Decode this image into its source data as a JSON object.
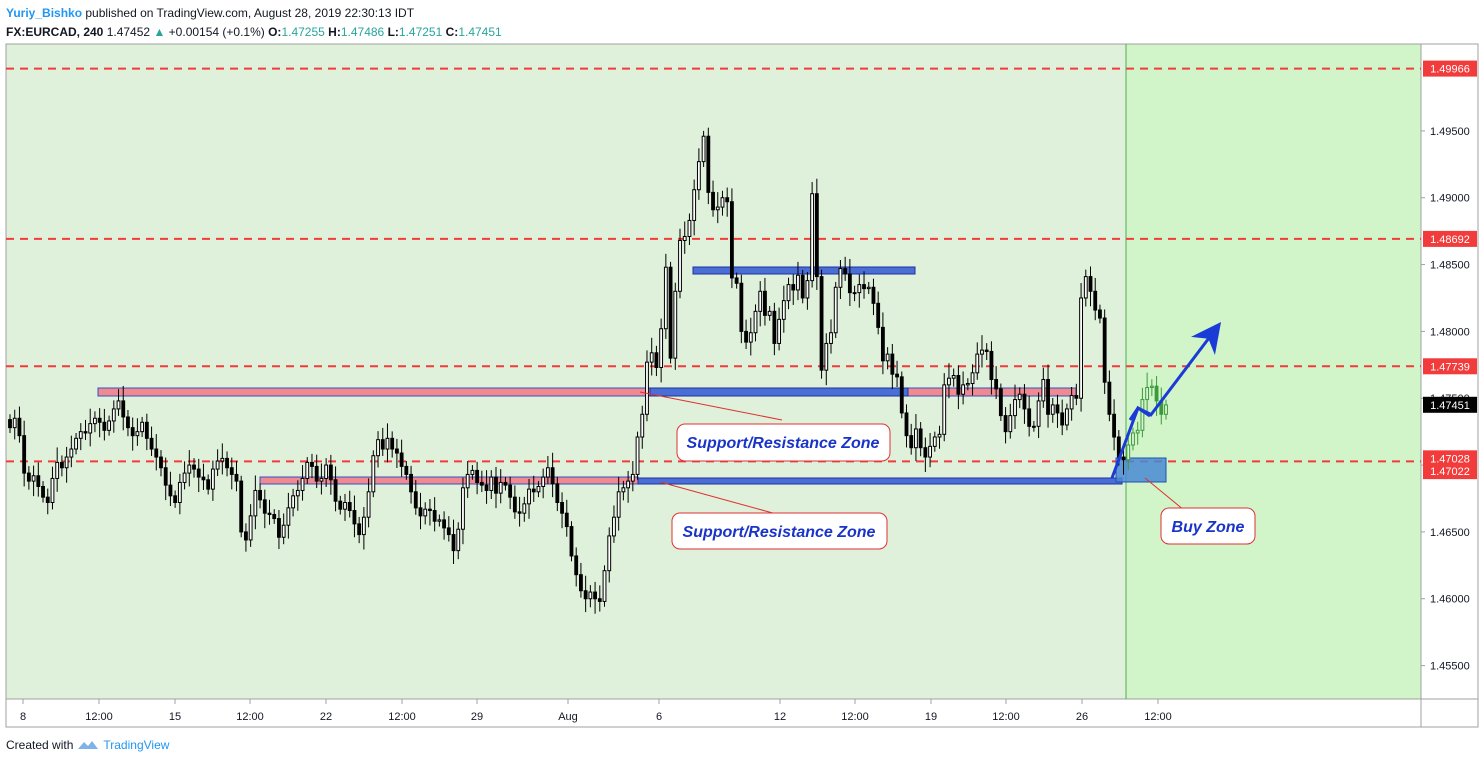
{
  "header": {
    "author": "Yuriy_Bishko",
    "published_text": "published on TradingView.com, August 28, 2019 22:30:13 IDT",
    "symbol_interval": "FX:EURCAD, 240",
    "last_price": "1.47452",
    "change": "+0.00154 (+0.1%)",
    "o_label": "O:",
    "o_value": "1.47255",
    "h_label": "H:",
    "h_value": "1.47486",
    "l_label": "L:",
    "l_value": "1.47251",
    "c_label": "C:",
    "c_value": "1.47451"
  },
  "footer": {
    "created_with": "Created with",
    "brand": "TradingView"
  },
  "annotations": {
    "sr_zone_1": "Support/Resistance Zone",
    "sr_zone_2": "Support/Resistance Zone",
    "buy_zone": "Buy Zone"
  },
  "colors": {
    "background_zone": "#dff0db",
    "forecast_zone": "#d2f4c9",
    "candle": "#000000",
    "dashed_line": "#f23b3b",
    "zone_fill_red": "#f08a8f",
    "zone_fill_blue": "#4a6fd4",
    "arrow": "#1a3bd6",
    "price_label_bg": "#f23b3b",
    "current_label_bg": "#000000"
  },
  "chart_data": {
    "type": "candlestick",
    "symbol": "FX:EURCAD",
    "interval": "240",
    "ylim": [
      1.4525,
      1.5015
    ],
    "y_ticks": [
      "1.45500",
      "1.46000",
      "1.46500",
      "1.47000",
      "1.47500",
      "1.48000",
      "1.48500",
      "1.49000",
      "1.49500"
    ],
    "x_ticks": [
      "8",
      "12:00",
      "15",
      "12:00",
      "22",
      "12:00",
      "29",
      "Aug",
      "6",
      "12",
      "12:00",
      "19",
      "12:00",
      "26",
      "12:00"
    ],
    "price_labels": [
      "1.49966",
      "1.48692",
      "1.47739",
      "1.47451",
      "1.47028",
      "1.47022"
    ],
    "horizontal_levels": [
      1.49966,
      1.48692,
      1.47739,
      1.47028
    ],
    "current_price": 1.47451,
    "closes": [
      1.4728,
      1.4735,
      1.4722,
      1.4694,
      1.4688,
      1.4692,
      1.4684,
      1.4676,
      1.4672,
      1.469,
      1.4702,
      1.4698,
      1.4706,
      1.4712,
      1.472,
      1.4725,
      1.4724,
      1.4731,
      1.4735,
      1.4732,
      1.4726,
      1.4733,
      1.4742,
      1.4748,
      1.4736,
      1.4728,
      1.4722,
      1.4725,
      1.4732,
      1.472,
      1.4712,
      1.4706,
      1.4698,
      1.4685,
      1.4677,
      1.4672,
      1.4687,
      1.4694,
      1.47,
      1.4697,
      1.4691,
      1.4689,
      1.4682,
      1.4697,
      1.4703,
      1.4705,
      1.4698,
      1.4693,
      1.4688,
      1.465,
      1.4644,
      1.4662,
      1.4681,
      1.4674,
      1.4664,
      1.4663,
      1.466,
      1.4646,
      1.4655,
      1.4668,
      1.4677,
      1.4681,
      1.469,
      1.4702,
      1.4699,
      1.4688,
      1.469,
      1.47,
      1.4689,
      1.4673,
      1.4667,
      1.4672,
      1.4666,
      1.4656,
      1.4648,
      1.4661,
      1.468,
      1.4707,
      1.4719,
      1.4712,
      1.472,
      1.4712,
      1.4709,
      1.4699,
      1.4693,
      1.468,
      1.4668,
      1.4662,
      1.4667,
      1.4666,
      1.4658,
      1.4659,
      1.4653,
      1.4648,
      1.4636,
      1.4652,
      1.4683,
      1.4693,
      1.4696,
      1.4687,
      1.4685,
      1.4681,
      1.4691,
      1.4679,
      1.4687,
      1.4685,
      1.4676,
      1.4665,
      1.4664,
      1.4671,
      1.4682,
      1.468,
      1.4684,
      1.4691,
      1.4698,
      1.4686,
      1.4672,
      1.4664,
      1.4654,
      1.4632,
      1.4618,
      1.4606,
      1.46,
      1.4605,
      1.46,
      1.4598,
      1.4621,
      1.4647,
      1.4661,
      1.468,
      1.4683,
      1.4688,
      1.4693,
      1.4721,
      1.4738,
      1.4777,
      1.4784,
      1.4773,
      1.4802,
      1.4848,
      1.478,
      1.483,
      1.4868,
      1.4871,
      1.4883,
      1.4906,
      1.4927,
      1.4946,
      1.4904,
      1.4891,
      1.4893,
      1.49,
      1.4897,
      1.484,
      1.4836,
      1.48,
      1.4792,
      1.4799,
      1.4815,
      1.483,
      1.4812,
      1.4815,
      1.4791,
      1.4809,
      1.4823,
      1.4835,
      1.4831,
      1.4842,
      1.4825,
      1.4838,
      1.4903,
      1.4841,
      1.4771,
      1.4791,
      1.4799,
      1.4833,
      1.4847,
      1.4843,
      1.4829,
      1.4829,
      1.4835,
      1.4832,
      1.4833,
      1.4821,
      1.4803,
      1.4778,
      1.4783,
      1.4768,
      1.4766,
      1.4739,
      1.4722,
      1.4713,
      1.4727,
      1.4713,
      1.4706,
      1.4714,
      1.4721,
      1.4723,
      1.476,
      1.4765,
      1.4767,
      1.4753,
      1.476,
      1.4761,
      1.4769,
      1.4783,
      1.4786,
      1.4785,
      1.4764,
      1.4757,
      1.4737,
      1.4725,
      1.4737,
      1.4749,
      1.4753,
      1.4742,
      1.4729,
      1.4729,
      1.4748,
      1.4764,
      1.4738,
      1.4745,
      1.4739,
      1.473,
      1.4742,
      1.4752,
      1.475,
      1.4825,
      1.4841,
      1.483,
      1.4816,
      1.481,
      1.4762,
      1.4738,
      1.4721,
      1.4706,
      1.4704,
      1.4715,
      1.4724,
      1.4726,
      1.4749,
      1.4758,
      1.4759,
      1.4748,
      1.4738,
      1.4745
    ]
  }
}
